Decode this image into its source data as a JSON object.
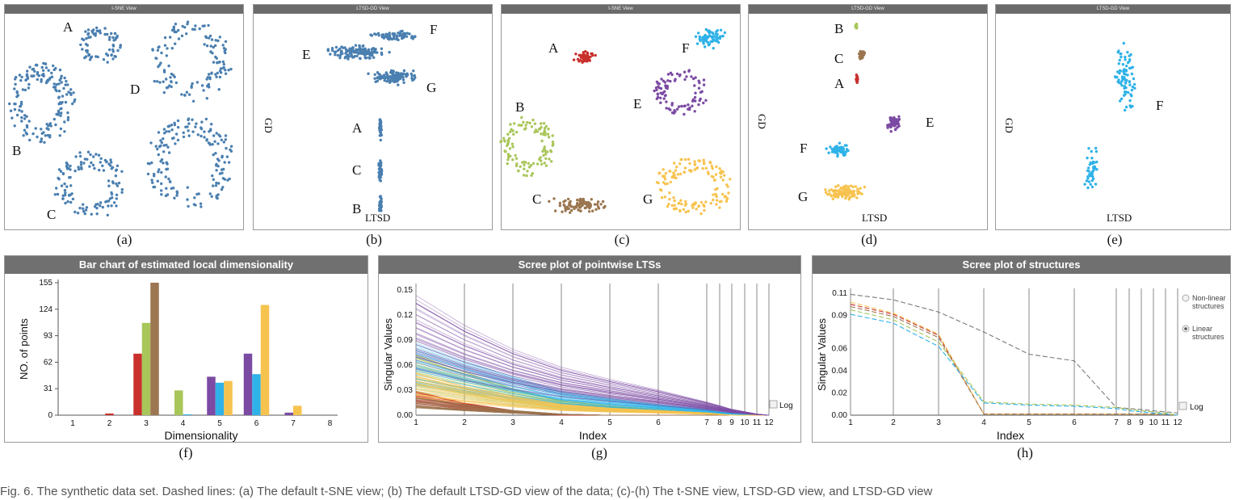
{
  "panels": {
    "a": {
      "header": "t-SNE View",
      "sub": "(a)",
      "clusters": [
        "A",
        "B",
        "C",
        "D"
      ]
    },
    "b": {
      "header": "LTSD-GD View",
      "sub": "(b)",
      "clusters": [
        "E",
        "F",
        "G",
        "A",
        "C",
        "B"
      ],
      "xlabel": "LTSD",
      "ylabel": "GD"
    },
    "c": {
      "header": "t-SNE View",
      "sub": "(c)",
      "clusters": [
        "A",
        "F",
        "E",
        "B",
        "C",
        "G"
      ]
    },
    "d": {
      "header": "LTSD-GD View",
      "sub": "(d)",
      "clusters": [
        "B",
        "C",
        "A",
        "E",
        "F",
        "G"
      ],
      "xlabel": "LTSD",
      "ylabel": "GD"
    },
    "e": {
      "header": "LTSD-GD View",
      "sub": "(e)",
      "clusters": [
        "F"
      ],
      "xlabel": "LTSD",
      "ylabel": "GD"
    }
  },
  "colors": {
    "red": "#c9302c",
    "green": "#a9c65a",
    "brown": "#9b7650",
    "purple": "#7b4aa3",
    "cyan": "#2fb2e8",
    "yellow": "#f7c34f",
    "blue": "#4a7fb0",
    "gray": "#7a7a7a"
  },
  "chart_data": [
    {
      "id": "f",
      "type": "bar",
      "title": "Bar chart of estimated local dimensionality",
      "sub": "(f)",
      "xlabel": "Dimensionality",
      "ylabel": "NO. of points",
      "categories": [
        "1",
        "2",
        "3",
        "4",
        "5",
        "6",
        "7",
        "8"
      ],
      "yticks": [
        "0",
        "31",
        "62",
        "93",
        "124",
        "155"
      ],
      "ylim": [
        0,
        155
      ],
      "series": [
        {
          "color": "red",
          "values": [
            0,
            2,
            72,
            0,
            0,
            0,
            0,
            0
          ]
        },
        {
          "color": "green",
          "values": [
            0,
            0,
            108,
            29,
            0,
            0,
            0,
            0
          ]
        },
        {
          "color": "brown",
          "values": [
            0,
            0,
            155,
            0,
            0,
            0,
            0,
            0
          ]
        },
        {
          "color": "purple",
          "values": [
            0,
            0,
            0,
            0,
            45,
            72,
            3,
            0
          ]
        },
        {
          "color": "cyan",
          "values": [
            0,
            0,
            0,
            1,
            38,
            48,
            0,
            0
          ]
        },
        {
          "color": "yellow",
          "values": [
            0,
            0,
            0,
            0,
            40,
            129,
            11,
            0
          ]
        }
      ]
    },
    {
      "id": "g",
      "type": "line",
      "title": "Scree plot of pointwise LTSs",
      "sub": "(g)",
      "xlabel": "Index",
      "ylabel": "Singular Values",
      "x": [
        "1",
        "2",
        "3",
        "4",
        "5",
        "6",
        "7",
        "8",
        "9",
        "10",
        "11",
        "12"
      ],
      "yticks": [
        "0.00",
        "0.03",
        "0.06",
        "0.09",
        "0.12",
        "0.15"
      ],
      "ylim": [
        0,
        0.15
      ],
      "legend": "Log",
      "bands": [
        {
          "color": "red",
          "values": [
            0.02,
            0.01,
            0.004,
            0,
            0,
            0,
            0,
            0,
            0,
            0,
            0,
            0
          ]
        },
        {
          "color": "brown",
          "values": [
            0.015,
            0.009,
            0.004,
            0.001,
            0,
            0,
            0,
            0,
            0,
            0,
            0,
            0
          ]
        },
        {
          "color": "green",
          "values": [
            0.05,
            0.036,
            0.022,
            0.012,
            0.008,
            0.005,
            0.002,
            0.001,
            0,
            0,
            0,
            0
          ]
        },
        {
          "color": "cyan",
          "values": [
            0.06,
            0.045,
            0.032,
            0.02,
            0.014,
            0.009,
            0.005,
            0.003,
            0.002,
            0.001,
            0,
            0
          ]
        },
        {
          "color": "yellow",
          "values": [
            0.035,
            0.024,
            0.016,
            0.009,
            0.006,
            0.004,
            0.002,
            0.001,
            0,
            0,
            0,
            0
          ]
        },
        {
          "color": "purple",
          "values": [
            0.1,
            0.075,
            0.055,
            0.04,
            0.03,
            0.021,
            0.011,
            0.008,
            0.005,
            0.003,
            0.001,
            0
          ]
        }
      ]
    },
    {
      "id": "h",
      "type": "line",
      "title": "Scree plot of structures",
      "sub": "(h)",
      "xlabel": "Index",
      "ylabel": "Singular Values",
      "x": [
        "1",
        "2",
        "3",
        "4",
        "5",
        "6",
        "7",
        "8",
        "9",
        "10",
        "11",
        "12"
      ],
      "yticks": [
        "0.00",
        "0.02",
        "0.04",
        "0.06",
        "0.09",
        "0.11"
      ],
      "ylim": [
        0,
        0.11
      ],
      "legend": {
        "items": [
          "Non-linear structures",
          "Linear structures"
        ],
        "log": "Log"
      },
      "series": [
        {
          "color": "gray",
          "values": [
            0.109,
            0.104,
            0.093,
            0.075,
            0.055,
            0.049,
            0.007,
            0.006,
            0.005,
            0.004,
            0.003,
            0.002
          ]
        },
        {
          "color": "red",
          "values": [
            0.1,
            0.091,
            0.072,
            0.001,
            0.001,
            0.001,
            0.001,
            0.001,
            0.001,
            0.001,
            0.001,
            0
          ]
        },
        {
          "color": "yellow",
          "values": [
            0.102,
            0.092,
            0.073,
            0.001,
            0.001,
            0.001,
            0.001,
            0.001,
            0.001,
            0.001,
            0.001,
            0
          ]
        },
        {
          "color": "brown",
          "values": [
            0.098,
            0.089,
            0.07,
            0.001,
            0.001,
            0.001,
            0.001,
            0.001,
            0.001,
            0.001,
            0.001,
            0
          ]
        },
        {
          "color": "cyan",
          "values": [
            0.091,
            0.083,
            0.062,
            0.011,
            0.009,
            0.008,
            0.006,
            0.004,
            0.003,
            0.002,
            0.001,
            0
          ]
        },
        {
          "color": "green",
          "values": [
            0.095,
            0.086,
            0.066,
            0.012,
            0.01,
            0.009,
            0.007,
            0.005,
            0.004,
            0.003,
            0.002,
            0
          ]
        }
      ]
    }
  ],
  "caption": "Fig. 6. The synthetic data set. Dashed lines: (a) The default t-SNE view; (b) The default LTSD-GD view of the data; (c)-(h) The t-SNE view, LTSD-GD view, and LTSD-GD view"
}
